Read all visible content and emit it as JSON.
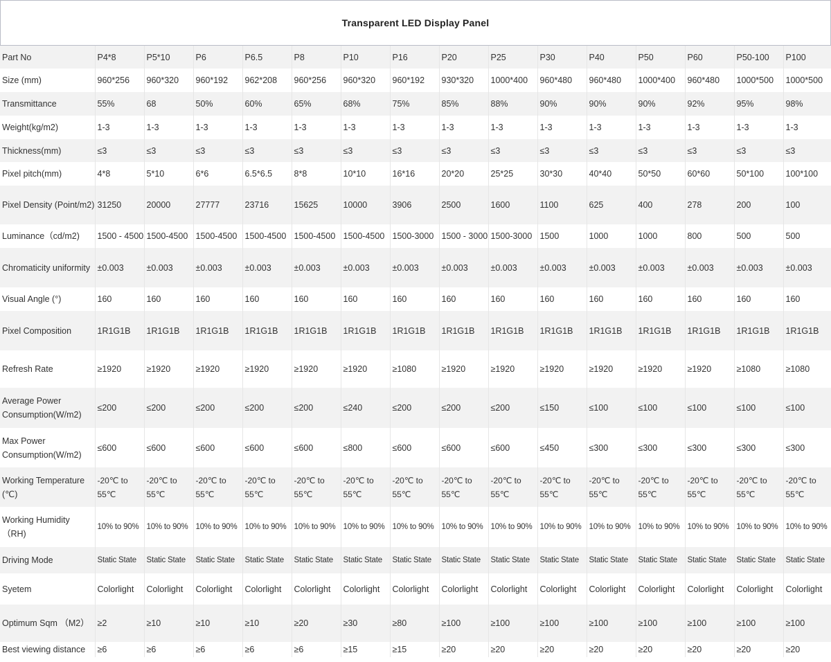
{
  "title": "Transparent LED Display Panel",
  "rows": [
    {
      "label": "Part No",
      "values": [
        "P4*8",
        "P5*10",
        "P6",
        "P6.5",
        "P8",
        "P10",
        "P16",
        "P20",
        "P25",
        "P30",
        "P40",
        "P50",
        "P60",
        "P50-100",
        "P100"
      ]
    },
    {
      "label": "Size (mm)",
      "values": [
        "960*256",
        "960*320",
        "960*192",
        "962*208",
        "960*256",
        "960*320",
        "960*192",
        "930*320",
        "1000*400",
        "960*480",
        "960*480",
        "1000*400",
        "960*480",
        "1000*500",
        "1000*500"
      ]
    },
    {
      "label": "Transmittance",
      "values": [
        "55%",
        "68",
        "50%",
        "60%",
        "65%",
        "68%",
        "75%",
        "85%",
        "88%",
        "90%",
        "90%",
        "90%",
        "92%",
        "95%",
        "98%"
      ]
    },
    {
      "label": "Weight(kg/m2)",
      "values": [
        "1-3",
        "1-3",
        "1-3",
        "1-3",
        "1-3",
        "1-3",
        "1-3",
        "1-3",
        "1-3",
        "1-3",
        "1-3",
        "1-3",
        "1-3",
        "1-3",
        "1-3"
      ]
    },
    {
      "label": "Thickness(mm)",
      "values": [
        "≤3",
        "≤3",
        "≤3",
        "≤3",
        "≤3",
        "≤3",
        "≤3",
        "≤3",
        "≤3",
        "≤3",
        "≤3",
        "≤3",
        "≤3",
        "≤3",
        "≤3"
      ]
    },
    {
      "label": "Pixel pitch(mm)",
      "values": [
        "4*8",
        "5*10",
        "6*6",
        "6.5*6.5",
        "8*8",
        "10*10",
        "16*16",
        "20*20",
        "25*25",
        "30*30",
        "40*40",
        "50*50",
        "60*60",
        "50*100",
        "100*100"
      ]
    },
    {
      "label": "Pixel Density (Point/m2)",
      "values": [
        "31250",
        "20000",
        "27777",
        "23716",
        "15625",
        "10000",
        "3906",
        "2500",
        "1600",
        "1100",
        "625",
        "400",
        "278",
        "200",
        "100"
      ]
    },
    {
      "label": "Luminance（cd/m2)",
      "values": [
        "1500 - 4500",
        "1500-4500",
        "1500-4500",
        "1500-4500",
        "1500-4500",
        "1500-4500",
        "1500-3000",
        "1500 - 3000",
        "1500-3000",
        "1500",
        "1000",
        "1000",
        "800",
        "500",
        "500"
      ]
    },
    {
      "label": "Chromaticity uniformity",
      "values": [
        "±0.003",
        "±0.003",
        "±0.003",
        "±0.003",
        "±0.003",
        "±0.003",
        "±0.003",
        "±0.003",
        "±0.003",
        "±0.003",
        "±0.003",
        "±0.003",
        "±0.003",
        "±0.003",
        "±0.003"
      ]
    },
    {
      "label": "Visual Angle (°)",
      "values": [
        "160",
        "160",
        "160",
        "160",
        "160",
        "160",
        "160",
        "160",
        "160",
        "160",
        "160",
        "160",
        "160",
        "160",
        "160"
      ]
    },
    {
      "label": "Pixel Composition",
      "values": [
        "1R1G1B",
        "1R1G1B",
        "1R1G1B",
        "1R1G1B",
        "1R1G1B",
        "1R1G1B",
        "1R1G1B",
        "1R1G1B",
        "1R1G1B",
        "1R1G1B",
        "1R1G1B",
        "1R1G1B",
        "1R1G1B",
        "1R1G1B",
        "1R1G1B"
      ]
    },
    {
      "label": "Refresh Rate",
      "values": [
        "≥1920",
        "≥1920",
        "≥1920",
        "≥1920",
        "≥1920",
        "≥1920",
        "≥1080",
        "≥1920",
        "≥1920",
        "≥1920",
        "≥1920",
        "≥1920",
        "≥1920",
        "≥1080",
        "≥1080"
      ]
    },
    {
      "label": "Average Power Consumption(W/m2)",
      "values": [
        "≤200",
        "≤200",
        "≤200",
        "≤200",
        "≤200",
        "≤240",
        "≤200",
        "≤200",
        "≤200",
        "≤150",
        "≤100",
        "≤100",
        "≤100",
        "≤100",
        "≤100"
      ]
    },
    {
      "label": "Max Power Consumption(W/m2)",
      "values": [
        "≤600",
        "≤600",
        "≤600",
        "≤600",
        "≤600",
        "≤800",
        "≤600",
        "≤600",
        "≤600",
        "≤450",
        "≤300",
        "≤300",
        "≤300",
        "≤300",
        "≤300"
      ]
    },
    {
      "label": "Working Temperature (℃)",
      "values": [
        "-20℃ to 55℃",
        "-20℃ to 55℃",
        "-20℃ to 55℃",
        "-20℃ to 55℃",
        "-20℃ to 55℃",
        "-20℃ to 55℃",
        "-20℃ to 55℃",
        "-20℃ to 55℃",
        "-20℃ to 55℃",
        "-20℃ to 55℃",
        "-20℃ to 55℃",
        "-20℃ to 55℃",
        "-20℃ to 55℃",
        "-20℃ to 55℃",
        "-20℃ to 55℃"
      ]
    },
    {
      "label": "Working Humidity （RH)",
      "values": [
        "10% to 90%",
        "10% to 90%",
        "10% to 90%",
        "10% to 90%",
        "10% to 90%",
        "10% to 90%",
        "10% to 90%",
        "10% to 90%",
        "10% to 90%",
        "10% to 90%",
        "10% to 90%",
        "10% to 90%",
        "10% to 90%",
        "10% to 90%",
        "10% to 90%"
      ]
    },
    {
      "label": "Driving Mode",
      "values": [
        "Static State",
        "Static State",
        "Static State",
        "Static State",
        "Static State",
        "Static State",
        "Static State",
        "Static State",
        "Static State",
        "Static State",
        "Static State",
        "Static State",
        "Static State",
        "Static State",
        "Static State"
      ]
    },
    {
      "label": "Syetem",
      "values": [
        "Colorlight",
        "Colorlight",
        "Colorlight",
        "Colorlight",
        "Colorlight",
        "Colorlight",
        "Colorlight",
        "Colorlight",
        "Colorlight",
        "Colorlight",
        "Colorlight",
        "Colorlight",
        "Colorlight",
        "Colorlight",
        "Colorlight"
      ]
    },
    {
      "label": "Optimum Sqm （M2）",
      "values": [
        "≥2",
        "≥10",
        "≥10",
        "≥10",
        "≥20",
        "≥30",
        "≥80",
        "≥100",
        "≥100",
        "≥100",
        "≥100",
        "≥100",
        "≥100",
        "≥100",
        "≥100"
      ]
    },
    {
      "label": "Best viewing distance",
      "values": [
        "≥6",
        "≥6",
        "≥6",
        "≥6",
        "≥6",
        "≥15",
        "≥15",
        "≥20",
        "≥20",
        "≥20",
        "≥20",
        "≥20",
        "≥20",
        "≥20",
        "≥20"
      ]
    }
  ]
}
